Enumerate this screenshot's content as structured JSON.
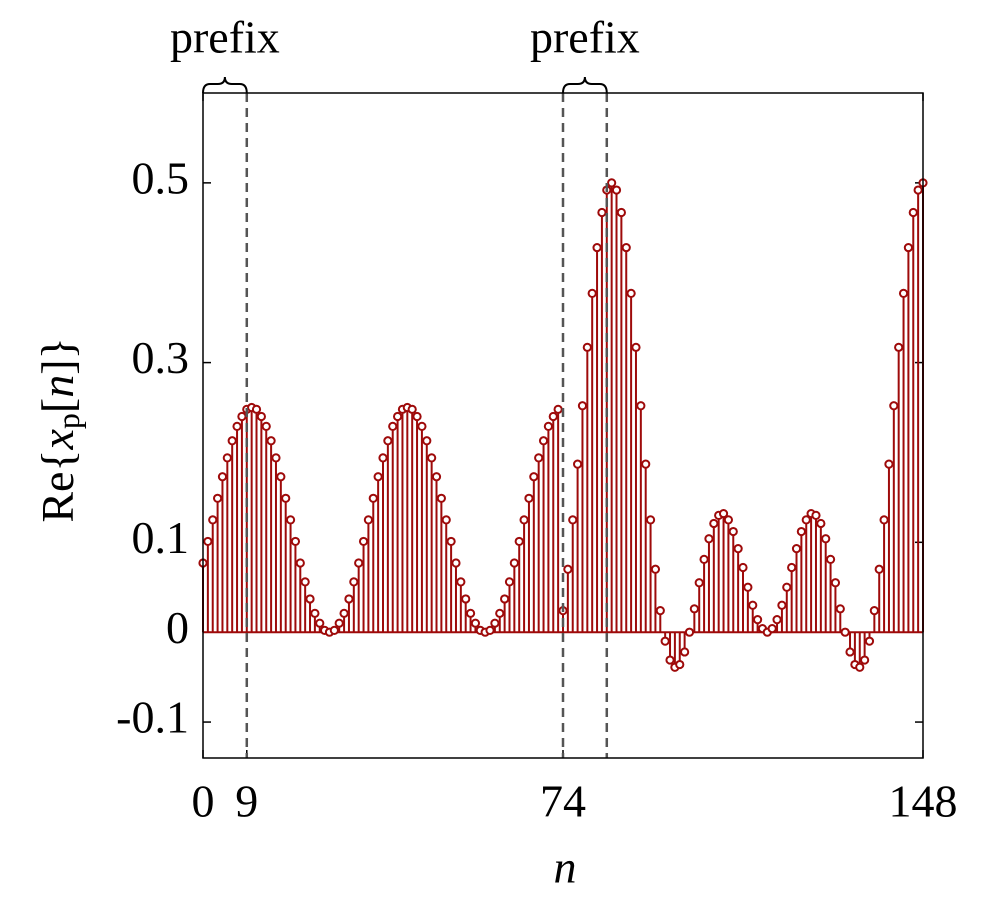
{
  "chart_data": {
    "type": "stem",
    "xlabel": "n",
    "ylabel": [
      "Re{",
      "x",
      "p",
      "[",
      "n",
      "]}"
    ],
    "x": [
      0,
      1,
      2,
      3,
      4,
      5,
      6,
      7,
      8,
      9,
      10,
      11,
      12,
      13,
      14,
      15,
      16,
      17,
      18,
      19,
      20,
      21,
      22,
      23,
      24,
      25,
      26,
      27,
      28,
      29,
      30,
      31,
      32,
      33,
      34,
      35,
      36,
      37,
      38,
      39,
      40,
      41,
      42,
      43,
      44,
      45,
      46,
      47,
      48,
      49,
      50,
      51,
      52,
      53,
      54,
      55,
      56,
      57,
      58,
      59,
      60,
      61,
      62,
      63,
      64,
      65,
      66,
      67,
      68,
      69,
      70,
      71,
      72,
      73,
      74,
      75,
      76,
      77,
      78,
      79,
      80,
      81,
      82,
      83,
      84,
      85,
      86,
      87,
      88,
      89,
      90,
      91,
      92,
      93,
      94,
      95,
      96,
      97,
      98,
      99,
      100,
      101,
      102,
      103,
      104,
      105,
      106,
      107,
      108,
      109,
      110,
      111,
      112,
      113,
      114,
      115,
      116,
      117,
      118,
      119,
      120,
      121,
      122,
      123,
      124,
      125,
      126,
      127,
      128,
      129,
      130,
      131,
      132,
      133,
      134,
      135,
      136,
      137,
      138,
      139,
      140,
      141,
      142,
      143,
      144,
      145,
      146,
      147,
      148
    ],
    "values": [
      0.077,
      0.101,
      0.125,
      0.149,
      0.173,
      0.194,
      0.213,
      0.229,
      0.24,
      0.248,
      0.25,
      0.248,
      0.24,
      0.229,
      0.213,
      0.194,
      0.173,
      0.149,
      0.125,
      0.101,
      0.077,
      0.056,
      0.037,
      0.021,
      0.01,
      0.002,
      0,
      0.002,
      0.01,
      0.021,
      0.037,
      0.056,
      0.077,
      0.101,
      0.125,
      0.149,
      0.173,
      0.194,
      0.213,
      0.229,
      0.24,
      0.248,
      0.25,
      0.248,
      0.24,
      0.229,
      0.213,
      0.194,
      0.173,
      0.149,
      0.125,
      0.101,
      0.077,
      0.056,
      0.037,
      0.021,
      0.01,
      0.002,
      0,
      0.002,
      0.01,
      0.021,
      0.037,
      0.056,
      0.077,
      0.101,
      0.125,
      0.149,
      0.173,
      0.194,
      0.213,
      0.229,
      0.24,
      0.248,
      0.024,
      0.07,
      0.125,
      0.187,
      0.252,
      0.317,
      0.377,
      0.428,
      0.467,
      0.492,
      0.5,
      0.492,
      0.467,
      0.428,
      0.377,
      0.317,
      0.252,
      0.187,
      0.125,
      0.07,
      0.024,
      -0.01,
      -0.031,
      -0.039,
      -0.036,
      -0.022,
      0,
      0.026,
      0.055,
      0.081,
      0.104,
      0.121,
      0.13,
      0.132,
      0.125,
      0.112,
      0.093,
      0.072,
      0.05,
      0.03,
      0.014,
      0.004,
      0,
      0.004,
      0.014,
      0.03,
      0.05,
      0.072,
      0.093,
      0.112,
      0.125,
      0.132,
      0.13,
      0.121,
      0.104,
      0.081,
      0.055,
      0.026,
      0,
      -0.022,
      -0.036,
      -0.039,
      -0.031,
      -0.01,
      0.024,
      0.07,
      0.125,
      0.187,
      0.252,
      0.317,
      0.377,
      0.428,
      0.467,
      0.492,
      0.5
    ],
    "color": "#9e0a0a",
    "xlim": [
      0,
      148
    ],
    "ylim": [
      -0.14,
      0.6
    ],
    "xticks": [
      0,
      9,
      74,
      148
    ],
    "yticks": [
      -0.1,
      0,
      0.1,
      0.3,
      0.5
    ],
    "vlines": [
      9,
      74,
      83
    ],
    "annotations": [
      {
        "text": "prefix",
        "span": [
          0,
          9
        ]
      },
      {
        "text": "prefix",
        "span": [
          74,
          83
        ]
      }
    ]
  }
}
